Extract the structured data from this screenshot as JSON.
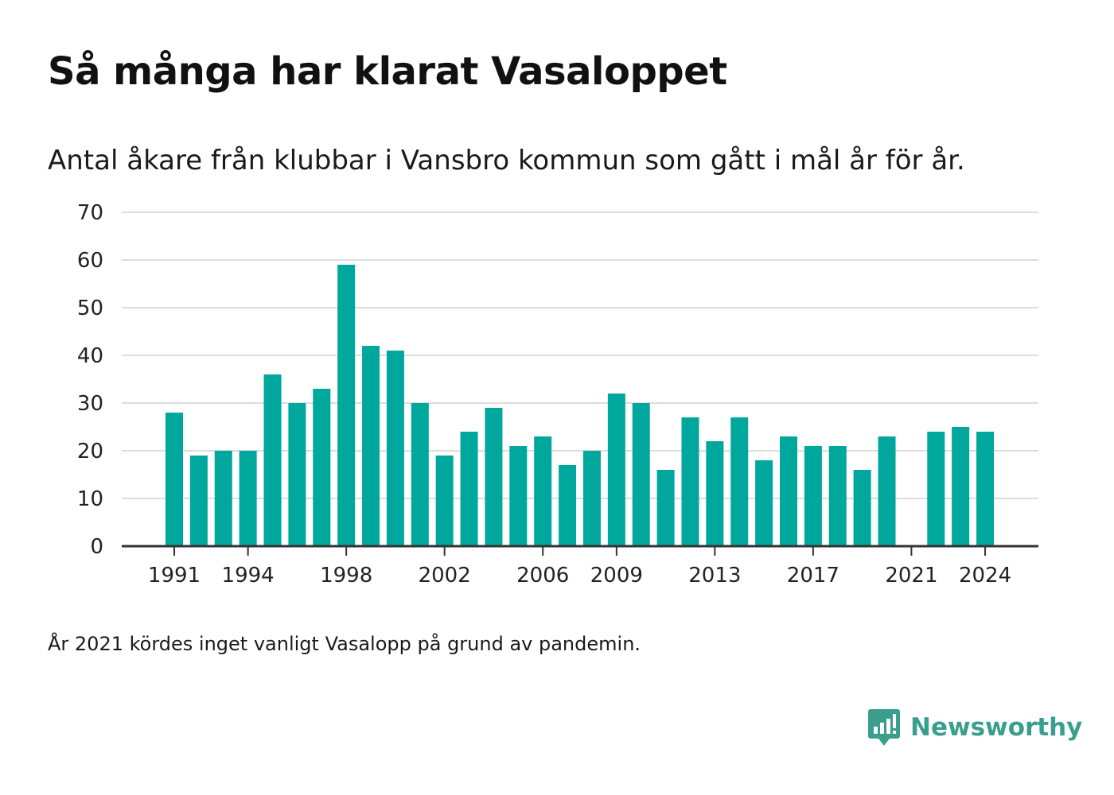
{
  "title": "Så många har klarat Vasaloppet",
  "subtitle": "Antal åkare från klubbar i Vansbro kommun som gått i mål år för år.",
  "footnote": "År 2021 kördes inget vanligt Vasalopp på grund av pandemin.",
  "brand": {
    "name": "Newsworthy",
    "icon": "newsworthy-logo-icon",
    "color": "#3a9e8f"
  },
  "chart_data": {
    "type": "bar",
    "title": "Så många har klarat Vasaloppet",
    "xlabel": "",
    "ylabel": "",
    "color": "#00a79d",
    "grid": true,
    "legend": "none",
    "ylim": [
      0,
      70
    ],
    "yticks": [
      0,
      10,
      20,
      30,
      40,
      50,
      60,
      70
    ],
    "xticks": [
      1991,
      1994,
      1998,
      2002,
      2006,
      2009,
      2013,
      2017,
      2021,
      2024
    ],
    "categories": [
      1991,
      1992,
      1993,
      1994,
      1995,
      1996,
      1997,
      1998,
      1999,
      2000,
      2001,
      2002,
      2003,
      2004,
      2005,
      2006,
      2007,
      2008,
      2009,
      2010,
      2011,
      2012,
      2013,
      2014,
      2015,
      2016,
      2017,
      2018,
      2019,
      2020,
      2021,
      2022,
      2023,
      2024
    ],
    "values": [
      28,
      19,
      20,
      20,
      36,
      30,
      33,
      59,
      42,
      41,
      30,
      19,
      24,
      29,
      21,
      23,
      17,
      20,
      32,
      30,
      16,
      27,
      22,
      27,
      18,
      23,
      21,
      21,
      16,
      23,
      null,
      24,
      25,
      24
    ]
  }
}
